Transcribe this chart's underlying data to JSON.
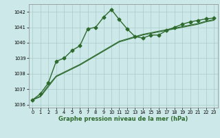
{
  "title": "Graphe pression niveau de la mer (hPa)",
  "line1": {
    "x": [
      0,
      1,
      2,
      3,
      4,
      5,
      6,
      7,
      8,
      9,
      10,
      11,
      12,
      13,
      14,
      15,
      16,
      17,
      18,
      19,
      20,
      21,
      22,
      23
    ],
    "y": [
      1036.3,
      1036.7,
      1037.4,
      1038.8,
      1039.0,
      1039.5,
      1039.8,
      1040.9,
      1041.0,
      1041.65,
      1042.15,
      1041.5,
      1040.9,
      1040.4,
      1040.3,
      1040.5,
      1040.5,
      1040.8,
      1041.0,
      1041.2,
      1041.35,
      1041.45,
      1041.55,
      1041.6
    ],
    "color": "#2d6a2d",
    "marker": "D",
    "markersize": 2.5,
    "linewidth": 1.0
  },
  "line2": {
    "x": [
      0,
      1,
      2,
      3,
      4,
      5,
      6,
      7,
      8,
      9,
      10,
      11,
      12,
      13,
      14,
      15,
      16,
      17,
      18,
      19,
      20,
      21,
      22,
      23
    ],
    "y": [
      1036.3,
      1036.5,
      1037.15,
      1037.8,
      1038.05,
      1038.3,
      1038.55,
      1038.85,
      1039.15,
      1039.45,
      1039.75,
      1040.05,
      1040.2,
      1040.35,
      1040.5,
      1040.6,
      1040.7,
      1040.8,
      1040.9,
      1041.0,
      1041.1,
      1041.2,
      1041.35,
      1041.45
    ],
    "color": "#2d6a2d",
    "linewidth": 0.8
  },
  "line3": {
    "x": [
      0,
      1,
      2,
      3,
      4,
      5,
      6,
      7,
      8,
      9,
      10,
      11,
      12,
      13,
      14,
      15,
      16,
      17,
      18,
      19,
      20,
      21,
      22,
      23
    ],
    "y": [
      1036.3,
      1036.55,
      1037.25,
      1037.85,
      1038.1,
      1038.35,
      1038.6,
      1038.9,
      1039.2,
      1039.5,
      1039.8,
      1040.1,
      1040.25,
      1040.4,
      1040.55,
      1040.65,
      1040.75,
      1040.85,
      1040.95,
      1041.05,
      1041.15,
      1041.25,
      1041.4,
      1041.5
    ],
    "color": "#2d6a2d",
    "linewidth": 0.8
  },
  "background_color": "#cce8e8",
  "grid_color": "#aacccc",
  "ylim": [
    1035.8,
    1042.5
  ],
  "yticks": [
    1036,
    1037,
    1038,
    1039,
    1040,
    1041,
    1042
  ],
  "xticks": [
    0,
    1,
    2,
    3,
    4,
    5,
    6,
    7,
    8,
    9,
    10,
    11,
    12,
    13,
    14,
    15,
    16,
    17,
    18,
    19,
    20,
    21,
    22,
    23
  ],
  "tick_fontsize": 4.8,
  "label_fontsize": 6.0,
  "label_color": "#2d6a2d"
}
